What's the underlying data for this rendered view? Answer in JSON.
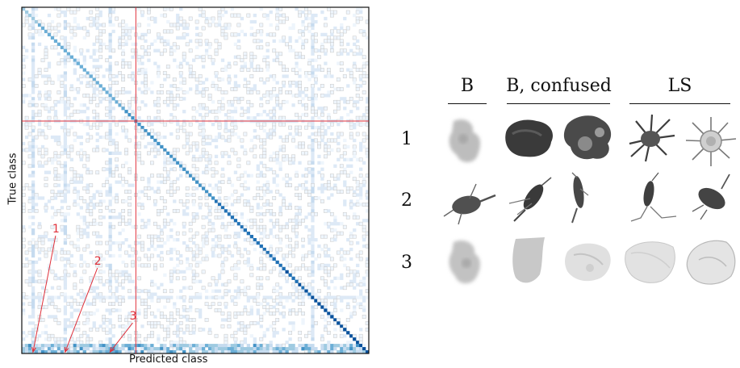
{
  "chart_data": {
    "type": "heatmap",
    "title": "",
    "xlabel": "Predicted class",
    "ylabel": "True class",
    "colormap": "Blues",
    "n_classes": 108,
    "highlight_index": 35,
    "highlight_color": "#e0303a",
    "annotations": [
      {
        "label": "1",
        "true_class": 107,
        "predicted_class": 3
      },
      {
        "label": "2",
        "true_class": 107,
        "predicted_class": 13
      },
      {
        "label": "3",
        "true_class": 107,
        "predicted_class": 27
      }
    ]
  },
  "panel": {
    "columns": [
      "B",
      "B, confused",
      "LS"
    ],
    "rows": [
      {
        "label": "1",
        "images": [
          "blurry-blob",
          "dark-blob",
          "dark-cluster",
          "spiky-organism",
          "radial-organism"
        ]
      },
      {
        "label": "2",
        "images": [
          "copepod",
          "shrimp",
          "elongated-crustacean",
          "copepod-small",
          "isopod"
        ]
      },
      {
        "label": "3",
        "images": [
          "blurry-blob-2",
          "gray-fragment",
          "faint-cluster",
          "pale-sheet",
          "pale-shell"
        ]
      }
    ]
  }
}
